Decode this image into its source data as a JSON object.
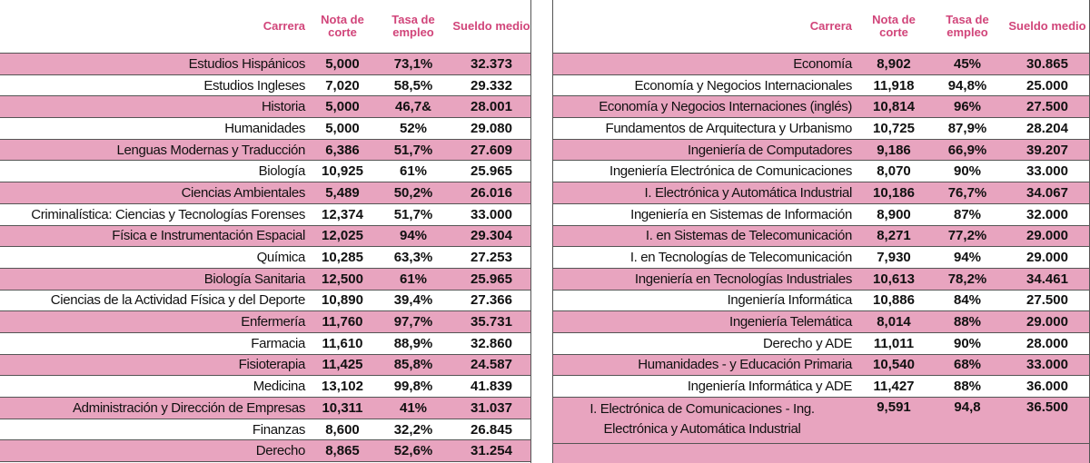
{
  "headers": {
    "career": "Carrera",
    "cut": "Nota de corte",
    "employment": "Tasa de empleo",
    "salary": "Sueldo medio"
  },
  "left_rows": [
    {
      "career": "Estudios Hispánicos",
      "cut": "5,000",
      "employment": "73,1%",
      "salary": "32.373"
    },
    {
      "career": "Estudios Ingleses",
      "cut": "7,020",
      "employment": "58,5%",
      "salary": "29.332"
    },
    {
      "career": "Historia",
      "cut": "5,000",
      "employment": "46,7&",
      "salary": "28.001"
    },
    {
      "career": "Humanidades",
      "cut": "5,000",
      "employment": "52%",
      "salary": "29.080"
    },
    {
      "career": "Lenguas Modernas y Traducción",
      "cut": "6,386",
      "employment": "51,7%",
      "salary": "27.609"
    },
    {
      "career": "Biología",
      "cut": "10,925",
      "employment": "61%",
      "salary": "25.965"
    },
    {
      "career": "Ciencias Ambientales",
      "cut": "5,489",
      "employment": "50,2%",
      "salary": "26.016"
    },
    {
      "career": "Criminalística: Ciencias y Tecnologías Forenses",
      "cut": "12,374",
      "employment": "51,7%",
      "salary": "33.000"
    },
    {
      "career": "Física e Instrumentación Espacial",
      "cut": "12,025",
      "employment": "94%",
      "salary": "29.304"
    },
    {
      "career": "Química",
      "cut": "10,285",
      "employment": "63,3%",
      "salary": "27.253"
    },
    {
      "career": "Biología Sanitaria",
      "cut": "12,500",
      "employment": "61%",
      "salary": "25.965"
    },
    {
      "career": "Ciencias de la Actividad Física y del Deporte",
      "cut": "10,890",
      "employment": "39,4%",
      "salary": "27.366"
    },
    {
      "career": "Enfermería",
      "cut": "11,760",
      "employment": "97,7%",
      "salary": "35.731"
    },
    {
      "career": "Farmacia",
      "cut": "11,610",
      "employment": "88,9%",
      "salary": "32.860"
    },
    {
      "career": "Fisioterapia",
      "cut": "11,425",
      "employment": "85,8%",
      "salary": "24.587"
    },
    {
      "career": "Medicina",
      "cut": "13,102",
      "employment": "99,8%",
      "salary": "41.839"
    },
    {
      "career": "Administración y Dirección de Empresas",
      "cut": "10,311",
      "employment": "41%",
      "salary": "31.037"
    },
    {
      "career": "Finanzas",
      "cut": "8,600",
      "employment": "32,2%",
      "salary": "26.845"
    },
    {
      "career": "Derecho",
      "cut": "8,865",
      "employment": "52,6%",
      "salary": "31.254"
    }
  ],
  "right_rows": [
    {
      "career": "Economía",
      "cut": "8,902",
      "employment": "45%",
      "salary": "30.865"
    },
    {
      "career": "Economía y Negocios Internacionales",
      "cut": "11,918",
      "employment": "94,8%",
      "salary": "25.000"
    },
    {
      "career": "Economía y Negocios Internaciones (inglés)",
      "cut": "10,814",
      "employment": "96%",
      "salary": "27.500"
    },
    {
      "career": "Fundamentos de Arquitectura y Urbanismo",
      "cut": "10,725",
      "employment": "87,9%",
      "salary": "28.204"
    },
    {
      "career": "Ingeniería de Computadores",
      "cut": "9,186",
      "employment": "66,9%",
      "salary": "39.207"
    },
    {
      "career": "Ingeniería Electrónica de Comunicaciones",
      "cut": "8,070",
      "employment": "90%",
      "salary": "33.000"
    },
    {
      "career": "I. Electrónica y Automática Industrial",
      "cut": "10,186",
      "employment": "76,7%",
      "salary": "34.067"
    },
    {
      "career": "Ingeniería en Sistemas de Información",
      "cut": "8,900",
      "employment": "87%",
      "salary": "32.000"
    },
    {
      "career": "I. en Sistemas de Telecomunicación",
      "cut": "8,271",
      "employment": "77,2%",
      "salary": "29.000"
    },
    {
      "career": "I. en Tecnologías de Telecomunicación",
      "cut": "7,930",
      "employment": "94%",
      "salary": "29.000"
    },
    {
      "career": "Ingeniería en Tecnologías Industriales",
      "cut": "10,613",
      "employment": "78,2%",
      "salary": "34.461"
    },
    {
      "career": "Ingeniería Informática",
      "cut": "10,886",
      "employment": "84%",
      "salary": "27.500"
    },
    {
      "career": "Ingeniería Telemática",
      "cut": "8,014",
      "employment": "88%",
      "salary": "29.000"
    },
    {
      "career": "Derecho y ADE",
      "cut": "11,011",
      "employment": "90%",
      "salary": "28.000"
    },
    {
      "career": "Humanidades - y Educación Primaria",
      "cut": "10,540",
      "employment": "68%",
      "salary": "33.000"
    },
    {
      "career": "Ingeniería Informática y ADE",
      "cut": "11,427",
      "employment": "88%",
      "salary": "36.000"
    }
  ],
  "right_last_row": {
    "career_line1": "I. Electrónica de Comunicaciones - Ing.",
    "career_line2": "Electrónica y Automática Industrial",
    "cut": "9,591",
    "employment": "94,8",
    "salary": "36.500"
  },
  "colors": {
    "pink_row": "#e8a4bf",
    "header_text": "#d1457a"
  }
}
